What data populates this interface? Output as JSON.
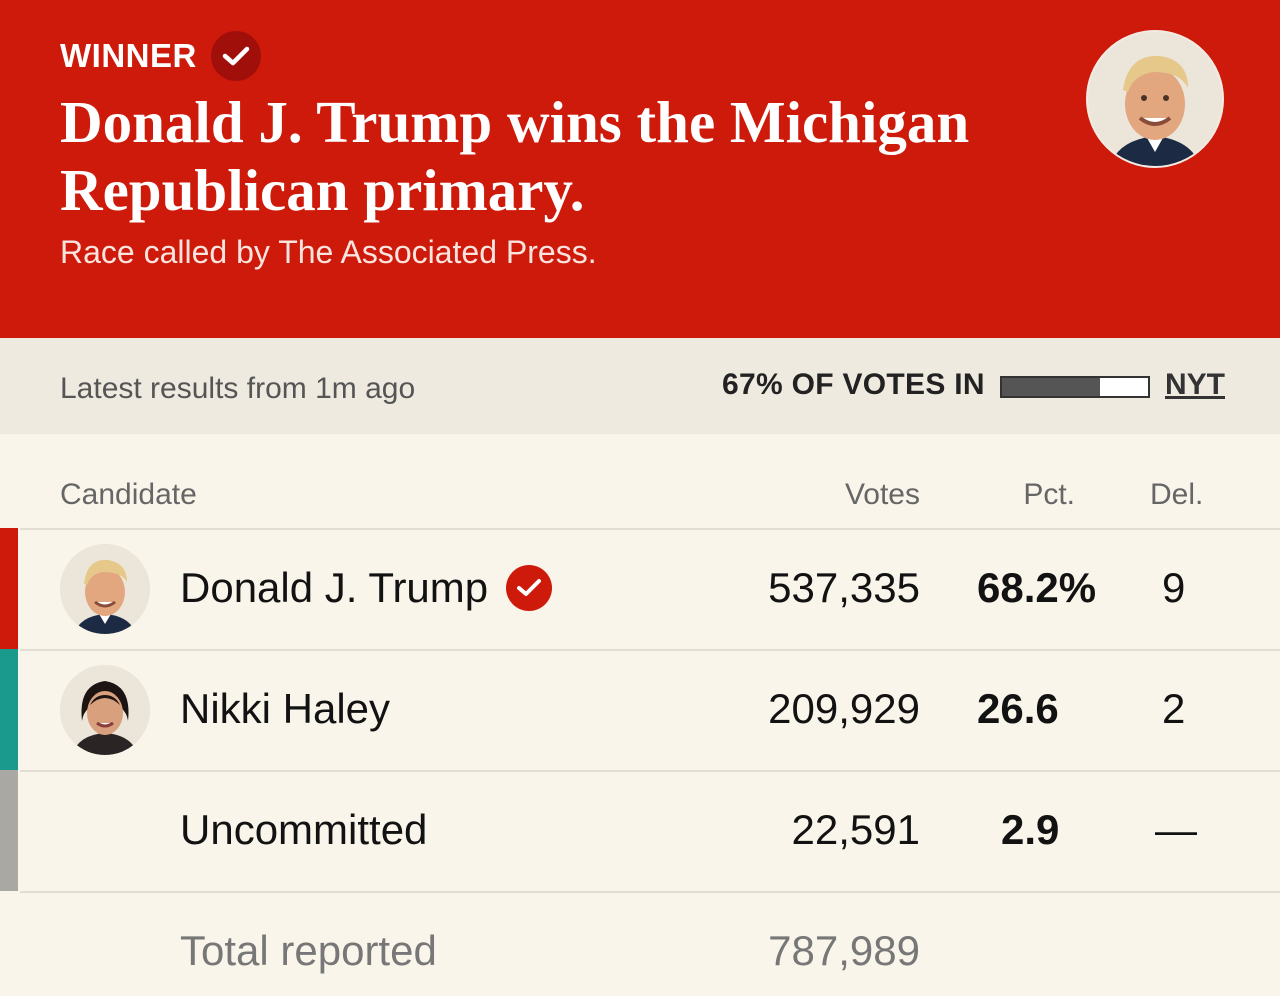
{
  "banner": {
    "winner_label": "WINNER",
    "headline": "Donald J. Trump wins the Michigan Republican primary.",
    "subhead": "Race called by The Associated Press.",
    "background_color": "#cd1a0a"
  },
  "status": {
    "updated": "Latest results from 1m ago",
    "votes_in": "67% OF VOTES IN",
    "votes_in_fraction": 0.67,
    "source_link": "NYT"
  },
  "table": {
    "headers": {
      "candidate": "Candidate",
      "votes": "Votes",
      "pct": "Pct.",
      "del": "Del."
    },
    "rows": [
      {
        "name": "Donald J. Trump",
        "votes": "537,335",
        "pct": "68.2%",
        "del": "9",
        "color": "#cd1a0a",
        "winner": true
      },
      {
        "name": "Nikki Haley",
        "votes": "209,929",
        "pct": "26.6",
        "del": "2",
        "color": "#1a9a8c",
        "winner": false
      },
      {
        "name": "Uncommitted",
        "votes": "22,591",
        "pct": "2.9",
        "del": "—",
        "color": "#a9a8a2",
        "winner": false
      }
    ],
    "total": {
      "label": "Total reported",
      "votes": "787,989"
    }
  }
}
